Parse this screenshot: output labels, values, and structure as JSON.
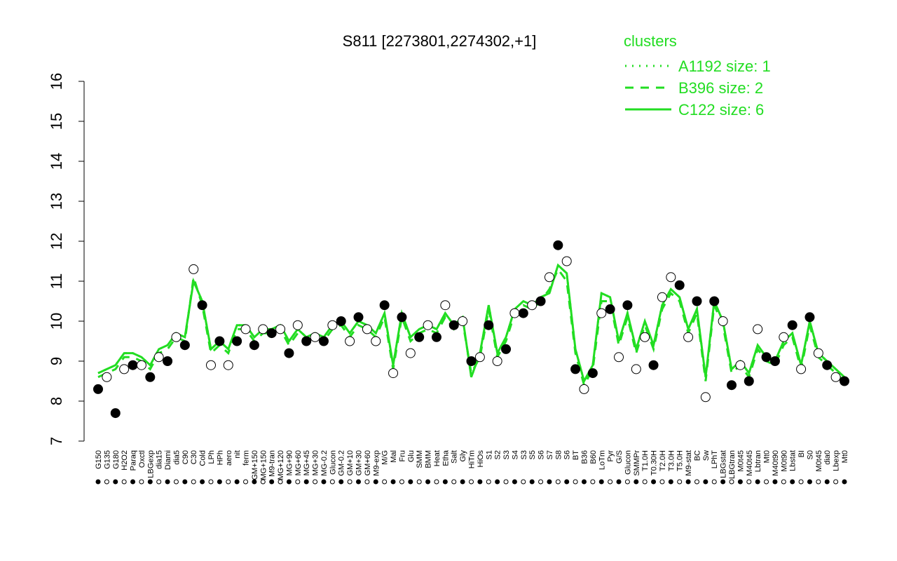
{
  "chart_data": {
    "type": "line",
    "title": "S811 [2273801,2274302,+1]",
    "legend_title": "clusters",
    "legend_position": "top-right",
    "ylim": [
      7,
      16
    ],
    "yticks": [
      7,
      8,
      9,
      10,
      11,
      12,
      13,
      14,
      15,
      16
    ],
    "categories": [
      "G150",
      "G135",
      "G180",
      "H2O2",
      "Paraq",
      "Oxctl",
      "LBGexp",
      "dia15",
      "Diami",
      "dia5",
      "C90",
      "C30",
      "Cold",
      "LPh",
      "HPh",
      "aero",
      "nit",
      "ferm",
      "GM+150",
      "MG+150",
      "M9-tran",
      "MG+120",
      "MG+90",
      "MG+60",
      "MG+45",
      "MG+30",
      "MG-0.2",
      "Glucon",
      "GM-0.2",
      "GM+10",
      "GM+30",
      "GM+60",
      "M9-exp",
      "M/G",
      "Mal",
      "Fru",
      "Glu",
      "SMM",
      "BMM",
      "Heat",
      "Etha",
      "Salt",
      "Gly",
      "HiTm",
      "HiOs",
      "S1",
      "S2",
      "S3",
      "S4",
      "S3",
      "S5",
      "S6",
      "S7",
      "S8",
      "S6",
      "BT",
      "B36",
      "B60",
      "LoTm",
      "Pyr",
      "G/S",
      "Glucon",
      "SMMPr",
      "T1.0H",
      "T0.30H",
      "T2.0H",
      "T3.0H",
      "T5.0H",
      "M9-stat",
      "BC",
      "Sw",
      "LPhT",
      "LBGstat",
      "LBGtran",
      "M0t45",
      "M40t45",
      "Lbtran",
      "Mt0",
      "M40t90",
      "M0t90",
      "Lbstat",
      "BI",
      "S0",
      "M0t45",
      "dia0",
      "Lbexp",
      "Mt0"
    ],
    "points": {
      "color": "#000000",
      "values": [
        8.3,
        8.6,
        7.7,
        8.8,
        8.9,
        8.9,
        8.6,
        9.1,
        9.0,
        9.6,
        9.4,
        11.3,
        10.4,
        8.9,
        9.5,
        8.9,
        9.5,
        9.8,
        9.4,
        9.8,
        9.7,
        9.8,
        9.2,
        9.9,
        9.5,
        9.6,
        9.5,
        9.9,
        10.0,
        9.5,
        10.1,
        9.8,
        9.5,
        10.4,
        8.7,
        10.1,
        9.2,
        9.6,
        9.9,
        9.6,
        10.4,
        9.9,
        10.0,
        9.0,
        9.1,
        9.9,
        9.0,
        9.3,
        10.2,
        10.2,
        10.4,
        10.5,
        11.1,
        11.9,
        11.5,
        8.8,
        8.3,
        8.7,
        10.2,
        10.3,
        9.1,
        10.4,
        8.8,
        9.6,
        8.9,
        10.6,
        11.1,
        10.9,
        9.6,
        10.5,
        8.1,
        10.5,
        10.0,
        8.4,
        8.9,
        8.5,
        9.8,
        9.1,
        9.0,
        9.6,
        9.9,
        8.8,
        10.1,
        9.2,
        8.9,
        8.6,
        8.5
      ],
      "filled": [
        true,
        false,
        true,
        false,
        true,
        false,
        true,
        false,
        true,
        false,
        true,
        false,
        true,
        false,
        true,
        false,
        true,
        false,
        true,
        false,
        true,
        false,
        true,
        false,
        true,
        false,
        true,
        false,
        true,
        false,
        true,
        false,
        false,
        true,
        false,
        true,
        false,
        true,
        false,
        true,
        false,
        true,
        false,
        true,
        false,
        true,
        false,
        true,
        false,
        true,
        false,
        true,
        false,
        true,
        false,
        true,
        false,
        true,
        false,
        true,
        false,
        true,
        false,
        false,
        true,
        false,
        false,
        true,
        false,
        true,
        false,
        true,
        false,
        true,
        false,
        true,
        false,
        true,
        true,
        false,
        true,
        false,
        true,
        false,
        true,
        false,
        true
      ]
    },
    "series": [
      {
        "name": "A1192 size: 1",
        "color": "#22dd22",
        "line_style": "dotted",
        "values": [
          8.7,
          8.8,
          8.9,
          9.2,
          9.2,
          9.1,
          8.9,
          9.3,
          9.4,
          9.7,
          9.6,
          11.0,
          10.5,
          9.3,
          9.5,
          9.3,
          9.9,
          9.9,
          9.6,
          9.8,
          9.8,
          9.9,
          9.5,
          9.8,
          9.6,
          9.7,
          9.6,
          9.9,
          10.0,
          9.7,
          10.0,
          9.9,
          9.7,
          10.2,
          8.9,
          10.2,
          9.6,
          9.8,
          9.9,
          9.8,
          10.2,
          9.9,
          10.1,
          8.6,
          9.2,
          10.4,
          9.2,
          9.6,
          10.3,
          10.5,
          10.4,
          10.6,
          10.7,
          11.4,
          11.2,
          9.3,
          8.5,
          8.9,
          10.7,
          10.6,
          9.5,
          10.2,
          9.3,
          10.0,
          9.4,
          10.4,
          10.8,
          10.6,
          9.8,
          10.3,
          8.6,
          10.5,
          10.0,
          8.8,
          9.0,
          8.7,
          9.4,
          9.1,
          9.0,
          9.5,
          9.7,
          8.9,
          10.0,
          9.2,
          9.0,
          8.8,
          8.6
        ]
      },
      {
        "name": "B396 size: 2",
        "color": "#22dd22",
        "line_style": "dashed",
        "values": [
          8.6,
          8.7,
          8.8,
          9.1,
          9.1,
          9.0,
          8.8,
          9.2,
          9.3,
          9.6,
          9.5,
          11.1,
          10.4,
          9.2,
          9.4,
          9.2,
          9.8,
          9.8,
          9.5,
          9.7,
          9.7,
          9.8,
          9.4,
          9.7,
          9.5,
          9.6,
          9.5,
          9.8,
          9.9,
          9.6,
          9.9,
          9.8,
          9.6,
          10.1,
          8.8,
          10.1,
          9.5,
          9.7,
          9.8,
          9.7,
          10.1,
          9.8,
          10.0,
          8.7,
          9.1,
          10.3,
          9.1,
          9.5,
          10.2,
          10.4,
          10.3,
          10.5,
          10.8,
          11.3,
          11.0,
          9.2,
          8.4,
          8.8,
          10.5,
          10.5,
          9.4,
          10.1,
          9.2,
          9.9,
          9.3,
          10.3,
          10.7,
          10.5,
          9.7,
          10.2,
          8.5,
          10.4,
          9.9,
          8.7,
          8.9,
          8.6,
          9.3,
          9.0,
          8.9,
          9.4,
          9.6,
          8.8,
          9.9,
          9.1,
          8.9,
          8.7,
          8.5
        ]
      },
      {
        "name": "C122 size: 6",
        "color": "#22dd22",
        "line_style": "solid",
        "values": [
          8.7,
          8.8,
          8.9,
          9.2,
          9.2,
          9.1,
          8.9,
          9.3,
          9.4,
          9.7,
          9.6,
          11.0,
          10.5,
          9.3,
          9.5,
          9.3,
          9.9,
          9.9,
          9.6,
          9.8,
          9.8,
          9.9,
          9.5,
          9.8,
          9.6,
          9.7,
          9.6,
          9.9,
          10.0,
          9.7,
          10.0,
          9.9,
          9.7,
          10.2,
          8.9,
          10.2,
          9.6,
          9.8,
          9.9,
          9.8,
          10.2,
          9.9,
          10.1,
          8.6,
          9.2,
          10.4,
          9.2,
          9.6,
          10.3,
          10.5,
          10.4,
          10.6,
          10.7,
          11.4,
          11.2,
          9.3,
          8.5,
          8.9,
          10.7,
          10.6,
          9.5,
          10.2,
          9.3,
          10.0,
          9.4,
          10.4,
          10.8,
          10.6,
          9.8,
          10.3,
          8.6,
          10.5,
          10.0,
          8.8,
          9.0,
          8.7,
          9.4,
          9.1,
          9.0,
          9.5,
          9.7,
          8.9,
          10.0,
          9.2,
          9.0,
          8.8,
          8.6
        ]
      }
    ]
  }
}
